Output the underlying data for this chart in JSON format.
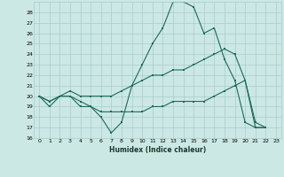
{
  "xlabel": "Humidex (Indice chaleur)",
  "xlim": [
    -0.5,
    23.5
  ],
  "ylim": [
    16,
    29
  ],
  "yticks": [
    16,
    17,
    18,
    19,
    20,
    21,
    22,
    23,
    24,
    25,
    26,
    27,
    28
  ],
  "xticks": [
    0,
    1,
    2,
    3,
    4,
    5,
    6,
    7,
    8,
    9,
    10,
    11,
    12,
    13,
    14,
    15,
    16,
    17,
    18,
    19,
    20,
    21,
    22,
    23
  ],
  "background_color": "#cce8e4",
  "grid_color": "#a8cccc",
  "line_color": "#1a6b5a",
  "line1_x": [
    0,
    1,
    2,
    3,
    4,
    5,
    6,
    7,
    8,
    9,
    10,
    11,
    12,
    13,
    14,
    15,
    16,
    17,
    18,
    19,
    20,
    21,
    22
  ],
  "line1_y": [
    20,
    19,
    20,
    20,
    19,
    19,
    18,
    16.5,
    17.5,
    21,
    23,
    25,
    26.5,
    29,
    29,
    28.5,
    26,
    26.5,
    23.5,
    21.5,
    17.5,
    17,
    17
  ],
  "line2_x": [
    0,
    1,
    2,
    3,
    4,
    5,
    6,
    7,
    8,
    9,
    10,
    11,
    12,
    13,
    14,
    15,
    16,
    17,
    18,
    19,
    20,
    21,
    22
  ],
  "line2_y": [
    20,
    19.5,
    20,
    20,
    19.5,
    19,
    18.5,
    18.5,
    18.5,
    18.5,
    18.5,
    19,
    19,
    19.5,
    19.5,
    19.5,
    19.5,
    20,
    20.5,
    21,
    21.5,
    17,
    17
  ],
  "line3_x": [
    0,
    1,
    2,
    3,
    4,
    5,
    6,
    7,
    8,
    9,
    10,
    11,
    12,
    13,
    14,
    15,
    16,
    17,
    18,
    19,
    20,
    21,
    22
  ],
  "line3_y": [
    20,
    19.5,
    20,
    20.5,
    20,
    20,
    20,
    20,
    20.5,
    21,
    21.5,
    22,
    22,
    22.5,
    22.5,
    23,
    23.5,
    24,
    24.5,
    24,
    21.5,
    17.5,
    17
  ]
}
